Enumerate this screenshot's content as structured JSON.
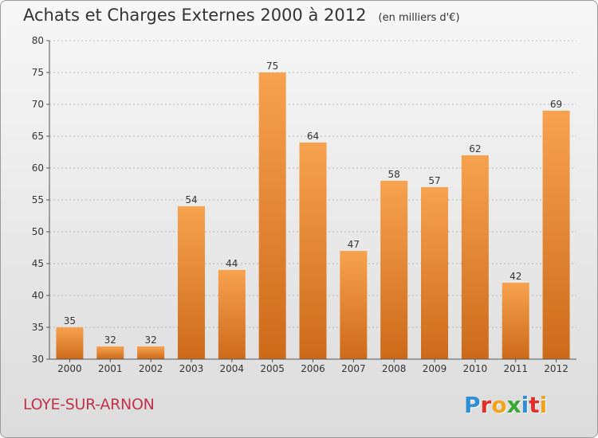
{
  "title": "Achats et Charges Externes 2000 à 2012",
  "subtitle": "(en milliers d'€)",
  "location": "LOYE-SUR-ARNON",
  "logo": {
    "text": "Proxiti",
    "letters": [
      {
        "ch": "P",
        "color": "#2e8fd6"
      },
      {
        "ch": "r",
        "color": "#e0302a"
      },
      {
        "ch": "o",
        "color": "#f3a21b"
      },
      {
        "ch": "x",
        "color": "#3aa63a"
      },
      {
        "ch": "i",
        "color": "#2e8fd6"
      },
      {
        "ch": "t",
        "color": "#e0302a"
      },
      {
        "ch": "i",
        "color": "#f3a21b"
      }
    ]
  },
  "colors": {
    "bar_top": "#f7a24f",
    "bar_bottom": "#cc6a1a",
    "axis": "#555555",
    "grid": "#888888",
    "title": "#333333",
    "location": "#c0334a"
  },
  "chart_data": {
    "type": "bar",
    "title": "Achats et Charges Externes 2000 à 2012",
    "subtitle": "(en milliers d'€)",
    "xlabel": "",
    "ylabel": "",
    "categories": [
      "2000",
      "2001",
      "2002",
      "2003",
      "2004",
      "2005",
      "2006",
      "2007",
      "2008",
      "2009",
      "2010",
      "2011",
      "2012"
    ],
    "values": [
      35,
      32,
      32,
      54,
      44,
      75,
      64,
      47,
      58,
      57,
      62,
      42,
      69
    ],
    "ylim": [
      30,
      80
    ],
    "yticks": [
      30,
      35,
      40,
      45,
      50,
      55,
      60,
      65,
      70,
      75,
      80
    ],
    "grid": "dashed horizontal",
    "data_labels": true,
    "legend": "none"
  }
}
